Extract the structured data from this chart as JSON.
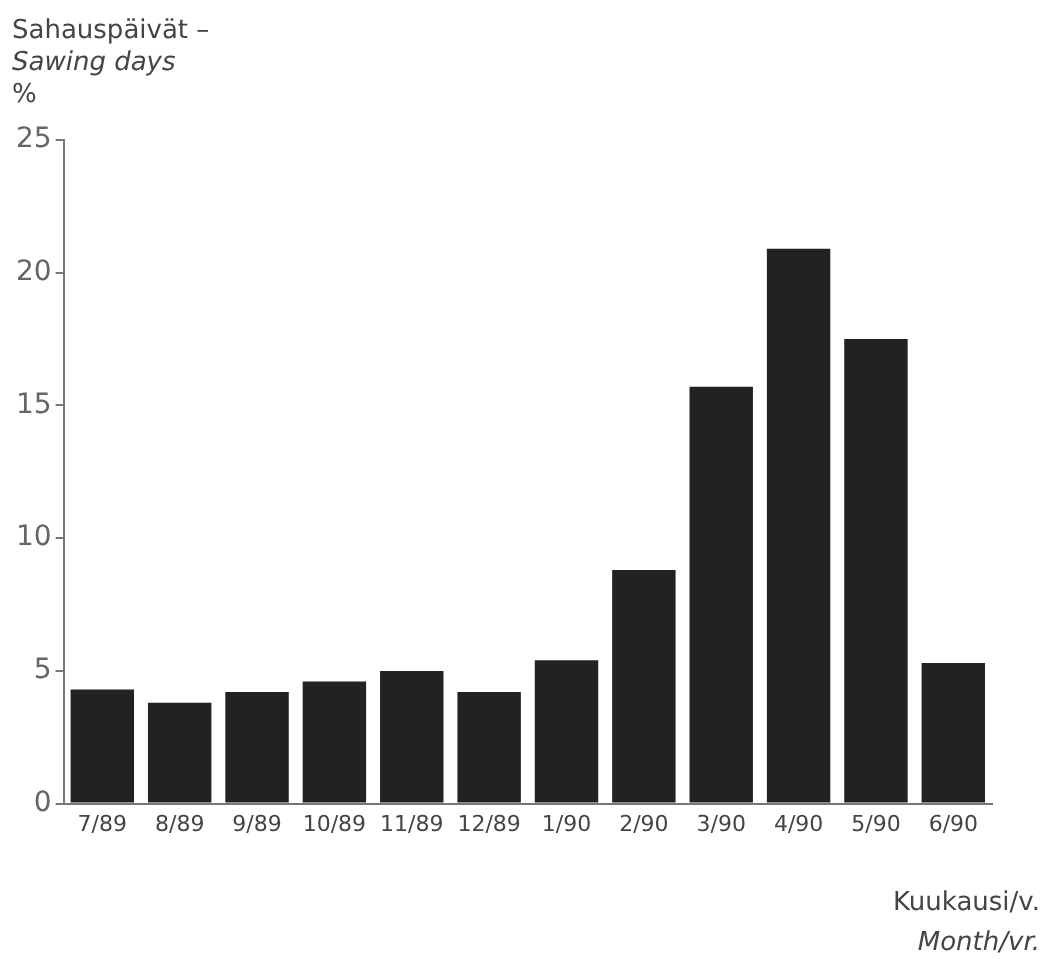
{
  "chart_data": {
    "type": "bar",
    "title": "Sahauspäivät –",
    "subtitle": "Sawing days",
    "ylabel": "%",
    "xlabel": "Kuukausi/v.",
    "annotations": [
      "Month/vr."
    ],
    "categories": [
      "7/89",
      "8/89",
      "9/89",
      "10/89",
      "11/89",
      "12/89",
      "1/90",
      "2/90",
      "3/90",
      "4/90",
      "5/90",
      "6/90"
    ],
    "values": [
      4.3,
      3.8,
      4.2,
      4.6,
      5.0,
      4.2,
      5.4,
      8.8,
      15.7,
      20.9,
      17.5,
      5.3
    ],
    "color": "#222222",
    "ylim": [
      0,
      25
    ],
    "yticks": [
      0,
      5,
      10,
      15,
      20,
      25
    ],
    "grid": false,
    "legend": false
  }
}
